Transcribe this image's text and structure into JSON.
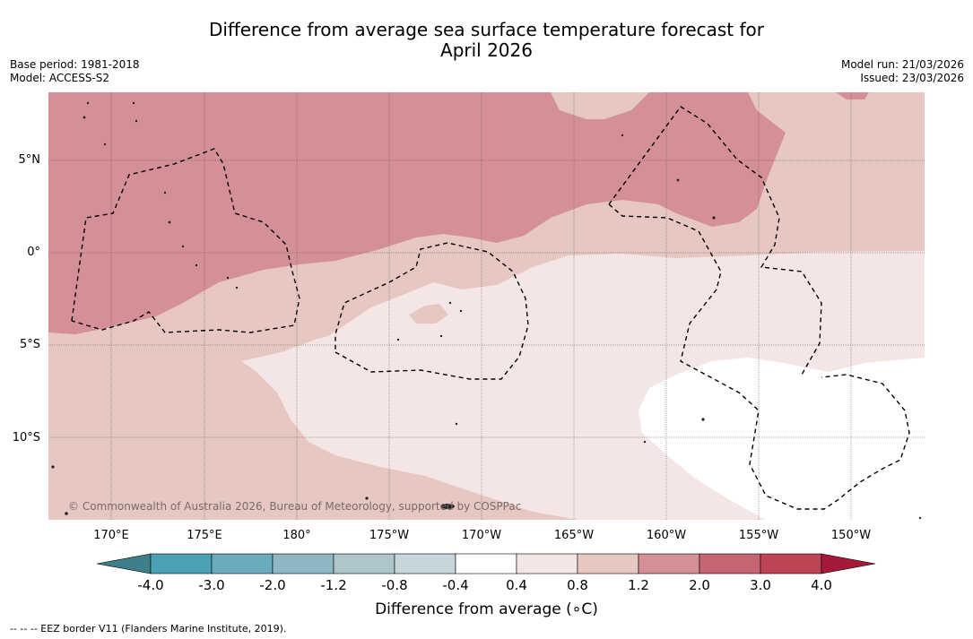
{
  "title_line1": "Difference from average sea surface temperature forecast for",
  "title_line2": "April 2026",
  "meta_left": {
    "base_period": "Base period: 1981-2018",
    "model": "Model: ACCESS-S2"
  },
  "meta_right": {
    "model_run": "Model run: 21/03/2026",
    "issued": "Issued: 23/03/2026"
  },
  "latitude_labels": [
    "5°N",
    "0°",
    "5°S",
    "10°S"
  ],
  "longitude_labels": [
    "170°E",
    "175°E",
    "180°",
    "175°W",
    "170°W",
    "165°W",
    "160°W",
    "155°W",
    "150°W"
  ],
  "copyright": "© Commonwealth of Australia 2026, Bureau of Meteorology, supported by COSPPac",
  "colorbar": {
    "title": "Difference from average (∘C)",
    "ticks": [
      "-4.0",
      "-3.0",
      "-2.0",
      "-1.2",
      "-0.8",
      "-0.4",
      "0.4",
      "0.8",
      "1.2",
      "2.0",
      "3.0",
      "4.0"
    ],
    "colors": [
      "#3f7f89",
      "#4aa2b4",
      "#6aabbd",
      "#8db7c3",
      "#acc6cb",
      "#c7d6da",
      "#ffffff",
      "#f4e6e5",
      "#e6c7c2",
      "#d59097",
      "#c66572",
      "#bd4556",
      "#a51a38"
    ]
  },
  "legend_note": "--  --  -- EEZ border V11 (Flanders Marine Institute, 2019)."
}
